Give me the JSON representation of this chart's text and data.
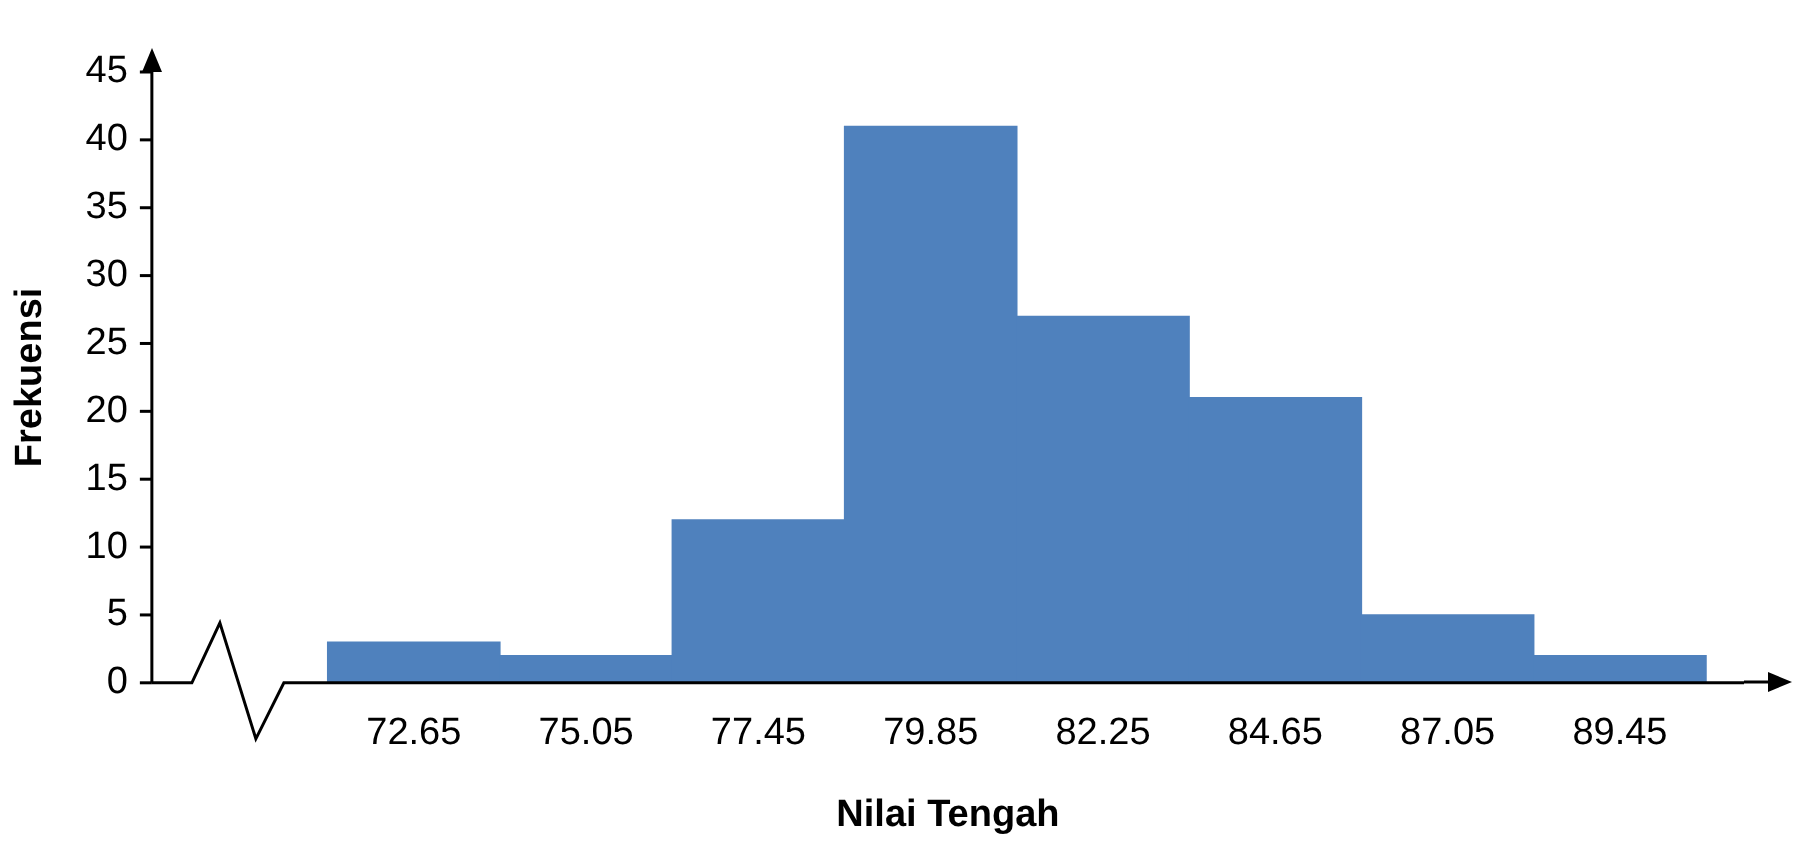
{
  "chart_data": {
    "type": "bar",
    "xlabel": "Nilai Tengah",
    "ylabel": "Frekuensi",
    "categories": [
      "72.65",
      "75.05",
      "77.45",
      "79.85",
      "82.25",
      "84.65",
      "87.05",
      "89.45"
    ],
    "values": [
      3,
      2,
      12,
      41,
      27,
      21,
      5,
      2
    ],
    "color": "#4f81bd",
    "ylim": [
      0,
      45
    ],
    "yticks": [
      0,
      5,
      10,
      15,
      20,
      25,
      30,
      35,
      40,
      45
    ],
    "grid": false,
    "legend": false
  }
}
